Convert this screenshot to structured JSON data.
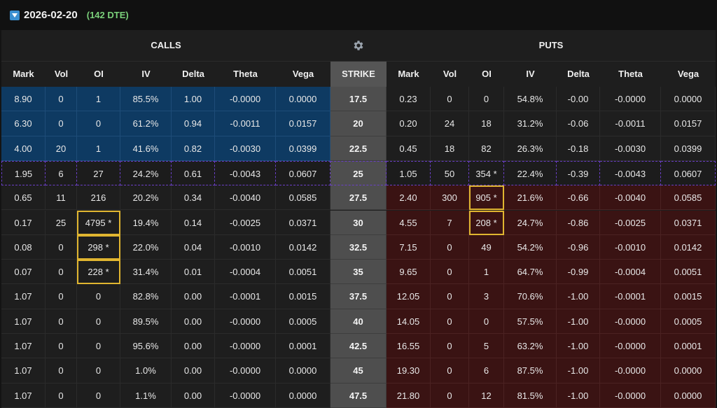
{
  "header": {
    "expiry_date": "2026-02-20",
    "dte": "(142 DTE)",
    "collapse_icon": "triangle-down-icon"
  },
  "sections": {
    "calls": "CALLS",
    "puts": "PUTS",
    "settings_icon": "gear-icon"
  },
  "columns": {
    "calls": [
      "Mark",
      "Vol",
      "OI",
      "IV",
      "Delta",
      "Theta",
      "Vega"
    ],
    "strike": "STRIKE",
    "puts": [
      "Mark",
      "Vol",
      "OI",
      "IV",
      "Delta",
      "Theta",
      "Vega"
    ]
  },
  "colors": {
    "call_itm": "#0e3a62",
    "put_itm": "#3a1313",
    "strike_bg": "#4e4e4e",
    "atm_border": "#6a3fc7",
    "highlight_border": "#e0b530",
    "dte_text": "#7ad07a"
  },
  "rows": [
    {
      "call_itm": true,
      "put_itm": false,
      "atm": false,
      "calls": [
        "8.90",
        "0",
        "1",
        "85.5%",
        "1.00",
        "-0.0000",
        "0.0000"
      ],
      "strike": "17.5",
      "puts": [
        "0.23",
        "0",
        "0",
        "54.8%",
        "-0.00",
        "-0.0000",
        "0.0000"
      ]
    },
    {
      "call_itm": true,
      "put_itm": false,
      "atm": false,
      "calls": [
        "6.30",
        "0",
        "0",
        "61.2%",
        "0.94",
        "-0.0011",
        "0.0157"
      ],
      "strike": "20",
      "puts": [
        "0.20",
        "24",
        "18",
        "31.2%",
        "-0.06",
        "-0.0011",
        "0.0157"
      ]
    },
    {
      "call_itm": true,
      "put_itm": false,
      "atm": false,
      "calls": [
        "4.00",
        "20",
        "1",
        "41.6%",
        "0.82",
        "-0.0030",
        "0.0399"
      ],
      "strike": "22.5",
      "puts": [
        "0.45",
        "18",
        "82",
        "26.3%",
        "-0.18",
        "-0.0030",
        "0.0399"
      ]
    },
    {
      "call_itm": false,
      "put_itm": false,
      "atm": true,
      "calls": [
        "1.95",
        "6",
        "27",
        "24.2%",
        "0.61",
        "-0.0043",
        "0.0607"
      ],
      "strike": "25",
      "puts": [
        "1.05",
        "50",
        "354 *",
        "22.4%",
        "-0.39",
        "-0.0043",
        "0.0607"
      ]
    },
    {
      "call_itm": false,
      "put_itm": true,
      "atm": false,
      "calls": [
        "0.65",
        "11",
        "216",
        "20.2%",
        "0.34",
        "-0.0040",
        "0.0585"
      ],
      "strike": "27.5",
      "puts": [
        "2.40",
        "300",
        "905 *",
        "21.6%",
        "-0.66",
        "-0.0040",
        "0.0585"
      ],
      "put_oi_highlight": true
    },
    {
      "call_itm": false,
      "put_itm": true,
      "atm": false,
      "calls": [
        "0.17",
        "25",
        "4795 *",
        "19.4%",
        "0.14",
        "-0.0025",
        "0.0371"
      ],
      "strike": "30",
      "puts": [
        "4.55",
        "7",
        "208 *",
        "24.7%",
        "-0.86",
        "-0.0025",
        "0.0371"
      ],
      "call_oi_highlight": true,
      "put_oi_highlight": true
    },
    {
      "call_itm": false,
      "put_itm": true,
      "atm": false,
      "calls": [
        "0.08",
        "0",
        "298 *",
        "22.0%",
        "0.04",
        "-0.0010",
        "0.0142"
      ],
      "strike": "32.5",
      "puts": [
        "7.15",
        "0",
        "49",
        "54.2%",
        "-0.96",
        "-0.0010",
        "0.0142"
      ],
      "call_oi_highlight": true
    },
    {
      "call_itm": false,
      "put_itm": true,
      "atm": false,
      "calls": [
        "0.07",
        "0",
        "228 *",
        "31.4%",
        "0.01",
        "-0.0004",
        "0.0051"
      ],
      "strike": "35",
      "puts": [
        "9.65",
        "0",
        "1",
        "64.7%",
        "-0.99",
        "-0.0004",
        "0.0051"
      ],
      "call_oi_highlight": true
    },
    {
      "call_itm": false,
      "put_itm": true,
      "atm": false,
      "calls": [
        "1.07",
        "0",
        "0",
        "82.8%",
        "0.00",
        "-0.0001",
        "0.0015"
      ],
      "strike": "37.5",
      "puts": [
        "12.05",
        "0",
        "3",
        "70.6%",
        "-1.00",
        "-0.0001",
        "0.0015"
      ]
    },
    {
      "call_itm": false,
      "put_itm": true,
      "atm": false,
      "calls": [
        "1.07",
        "0",
        "0",
        "89.5%",
        "0.00",
        "-0.0000",
        "0.0005"
      ],
      "strike": "40",
      "puts": [
        "14.05",
        "0",
        "0",
        "57.5%",
        "-1.00",
        "-0.0000",
        "0.0005"
      ]
    },
    {
      "call_itm": false,
      "put_itm": true,
      "atm": false,
      "calls": [
        "1.07",
        "0",
        "0",
        "95.6%",
        "0.00",
        "-0.0000",
        "0.0001"
      ],
      "strike": "42.5",
      "puts": [
        "16.55",
        "0",
        "5",
        "63.2%",
        "-1.00",
        "-0.0000",
        "0.0001"
      ]
    },
    {
      "call_itm": false,
      "put_itm": true,
      "atm": false,
      "calls": [
        "1.07",
        "0",
        "0",
        "1.0%",
        "0.00",
        "-0.0000",
        "0.0000"
      ],
      "strike": "45",
      "puts": [
        "19.30",
        "0",
        "6",
        "87.5%",
        "-1.00",
        "-0.0000",
        "0.0000"
      ]
    },
    {
      "call_itm": false,
      "put_itm": true,
      "atm": false,
      "calls": [
        "1.07",
        "0",
        "0",
        "1.1%",
        "0.00",
        "-0.0000",
        "0.0000"
      ],
      "strike": "47.5",
      "puts": [
        "21.80",
        "0",
        "12",
        "81.5%",
        "-1.00",
        "-0.0000",
        "0.0000"
      ]
    }
  ]
}
